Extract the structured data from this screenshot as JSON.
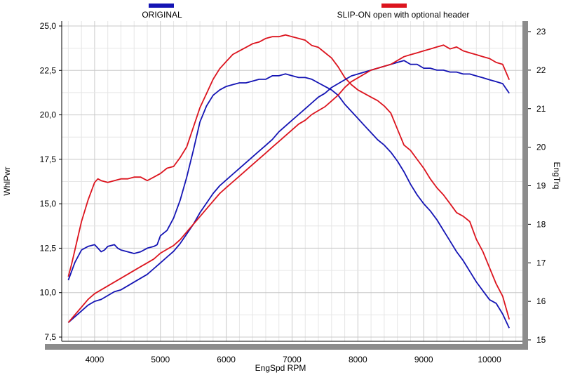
{
  "chart_data": {
    "type": "line",
    "xlabel": "EngSpd  RPM",
    "ylabel_left": "WhlPwr",
    "ylabel_right": "EngTrq",
    "xlim": [
      3500,
      10500
    ],
    "ylim_left": [
      7.5,
      25.0
    ],
    "ylim_right": [
      15,
      23
    ],
    "x_ticks": [
      4000,
      5000,
      6000,
      7000,
      8000,
      9000,
      10000
    ],
    "y_left_ticks": [
      "7,5",
      "10,0",
      "12,5",
      "15,0",
      "17,5",
      "20,0",
      "22,5",
      "25,0"
    ],
    "y_left_tick_values": [
      7.5,
      10.0,
      12.5,
      15.0,
      17.5,
      20.0,
      22.5,
      25.0
    ],
    "y_right_ticks": [
      15,
      16,
      17,
      18,
      19,
      20,
      21,
      22,
      23
    ],
    "grid": true,
    "legend": [
      {
        "name": "ORIGINAL",
        "color": "#1414b4"
      },
      {
        "name": "SLIP-ON open with optional header",
        "color": "#dc141e"
      }
    ],
    "series": [
      {
        "name": "ORIGINAL",
        "measure": "WhlPwr",
        "axis": "left",
        "color": "#1414b4",
        "x": [
          3600,
          3700,
          3800,
          3900,
          4000,
          4050,
          4100,
          4150,
          4200,
          4300,
          4350,
          4400,
          4500,
          4600,
          4700,
          4800,
          4900,
          4950,
          5000,
          5100,
          5200,
          5300,
          5400,
          5500,
          5600,
          5700,
          5800,
          5900,
          6000,
          6100,
          6200,
          6300,
          6400,
          6500,
          6600,
          6700,
          6800,
          6900,
          7000,
          7100,
          7200,
          7300,
          7400,
          7500,
          7600,
          7700,
          7800,
          7900,
          8000,
          8100,
          8200,
          8300,
          8400,
          8500,
          8600,
          8700,
          8800,
          8900,
          9000,
          9100,
          9200,
          9300,
          9400,
          9500,
          9600,
          9700,
          9800,
          9900,
          10000,
          10100,
          10200,
          10300
        ],
        "values": [
          10.7,
          11.7,
          12.4,
          12.6,
          12.7,
          12.5,
          12.3,
          12.4,
          12.6,
          12.7,
          12.5,
          12.4,
          12.3,
          12.2,
          12.3,
          12.5,
          12.6,
          12.7,
          13.2,
          13.5,
          14.2,
          15.2,
          16.5,
          18.0,
          19.6,
          20.5,
          21.1,
          21.4,
          21.6,
          21.7,
          21.8,
          21.8,
          21.9,
          22.0,
          22.0,
          22.2,
          22.2,
          22.3,
          22.2,
          22.1,
          22.1,
          22.0,
          21.8,
          21.6,
          21.4,
          21.1,
          20.6,
          20.2,
          19.8,
          19.4,
          19.0,
          18.6,
          18.3,
          17.9,
          17.4,
          16.8,
          16.1,
          15.5,
          15.0,
          14.6,
          14.1,
          13.5,
          12.9,
          12.3,
          11.8,
          11.2,
          10.6,
          10.1,
          9.6,
          9.4,
          8.8,
          8.0
        ]
      },
      {
        "name": "SLIP-ON open with optional header",
        "measure": "WhlPwr",
        "axis": "left",
        "color": "#dc141e",
        "x": [
          3600,
          3650,
          3700,
          3800,
          3900,
          4000,
          4050,
          4100,
          4200,
          4300,
          4400,
          4500,
          4600,
          4700,
          4800,
          4900,
          5000,
          5100,
          5200,
          5300,
          5400,
          5500,
          5600,
          5700,
          5800,
          5900,
          6000,
          6100,
          6200,
          6300,
          6400,
          6500,
          6600,
          6700,
          6800,
          6900,
          7000,
          7100,
          7200,
          7300,
          7400,
          7500,
          7600,
          7700,
          7800,
          7900,
          8000,
          8100,
          8200,
          8300,
          8400,
          8500,
          8600,
          8700,
          8800,
          8900,
          9000,
          9100,
          9200,
          9300,
          9400,
          9500,
          9600,
          9700,
          9800,
          9900,
          10000,
          10100,
          10200,
          10300
        ],
        "values": [
          10.9,
          11.6,
          12.4,
          14.0,
          15.2,
          16.2,
          16.4,
          16.3,
          16.2,
          16.3,
          16.4,
          16.4,
          16.5,
          16.5,
          16.3,
          16.5,
          16.7,
          17.0,
          17.1,
          17.6,
          18.2,
          19.3,
          20.4,
          21.2,
          22.0,
          22.6,
          23.0,
          23.4,
          23.6,
          23.8,
          24.0,
          24.1,
          24.3,
          24.4,
          24.4,
          24.5,
          24.4,
          24.3,
          24.2,
          23.9,
          23.8,
          23.5,
          23.2,
          22.7,
          22.1,
          21.7,
          21.4,
          21.2,
          21.0,
          20.8,
          20.5,
          20.1,
          19.2,
          18.3,
          18.0,
          17.5,
          17.0,
          16.4,
          15.9,
          15.5,
          15.0,
          14.5,
          14.3,
          14.0,
          13.0,
          12.3,
          11.4,
          10.5,
          9.8,
          8.5
        ]
      },
      {
        "name": "ORIGINAL",
        "measure": "EngTrq",
        "axis": "right",
        "color": "#1414b4",
        "x": [
          3600,
          3700,
          3800,
          3900,
          4000,
          4100,
          4200,
          4300,
          4400,
          4500,
          4600,
          4700,
          4800,
          4900,
          5000,
          5100,
          5200,
          5300,
          5400,
          5500,
          5600,
          5700,
          5800,
          5900,
          6000,
          6100,
          6200,
          6300,
          6400,
          6500,
          6600,
          6700,
          6800,
          6900,
          7000,
          7100,
          7200,
          7300,
          7400,
          7500,
          7600,
          7700,
          7800,
          7900,
          8000,
          8100,
          8200,
          8300,
          8400,
          8500,
          8600,
          8700,
          8800,
          8900,
          9000,
          9100,
          9200,
          9300,
          9400,
          9500,
          9600,
          9700,
          9800,
          9900,
          10000,
          10100,
          10200,
          10300
        ],
        "values": [
          15.45,
          15.6,
          15.75,
          15.9,
          16.0,
          16.05,
          16.15,
          16.25,
          16.3,
          16.4,
          16.5,
          16.6,
          16.7,
          16.85,
          17.0,
          17.15,
          17.3,
          17.5,
          17.75,
          18.0,
          18.3,
          18.55,
          18.8,
          19.0,
          19.15,
          19.3,
          19.45,
          19.6,
          19.75,
          19.9,
          20.05,
          20.2,
          20.4,
          20.55,
          20.7,
          20.85,
          21.0,
          21.15,
          21.3,
          21.4,
          21.55,
          21.65,
          21.75,
          21.85,
          21.9,
          21.95,
          22.0,
          22.05,
          22.1,
          22.15,
          22.2,
          22.25,
          22.15,
          22.15,
          22.05,
          22.05,
          22.0,
          22.0,
          21.95,
          21.95,
          21.9,
          21.9,
          21.85,
          21.8,
          21.75,
          21.7,
          21.65,
          21.4
        ],
        "note": ""
      },
      {
        "name": "SLIP-ON open with optional header",
        "measure": "EngTrq",
        "axis": "right",
        "color": "#dc141e",
        "x": [
          3600,
          3700,
          3800,
          3900,
          4000,
          4100,
          4200,
          4300,
          4400,
          4500,
          4600,
          4700,
          4800,
          4900,
          5000,
          5100,
          5200,
          5300,
          5400,
          5500,
          5600,
          5700,
          5800,
          5900,
          6000,
          6100,
          6200,
          6300,
          6400,
          6500,
          6600,
          6700,
          6800,
          6900,
          7000,
          7100,
          7200,
          7300,
          7400,
          7500,
          7600,
          7700,
          7800,
          7900,
          8000,
          8100,
          8200,
          8300,
          8400,
          8500,
          8600,
          8700,
          8800,
          8900,
          9000,
          9100,
          9200,
          9300,
          9400,
          9500,
          9600,
          9700,
          9800,
          9900,
          10000,
          10100,
          10200,
          10300
        ],
        "values": [
          15.45,
          15.65,
          15.85,
          16.05,
          16.2,
          16.3,
          16.4,
          16.5,
          16.6,
          16.7,
          16.8,
          16.9,
          17.0,
          17.1,
          17.25,
          17.35,
          17.45,
          17.6,
          17.8,
          18.0,
          18.2,
          18.4,
          18.6,
          18.8,
          18.95,
          19.1,
          19.25,
          19.4,
          19.55,
          19.7,
          19.85,
          20.0,
          20.15,
          20.3,
          20.45,
          20.6,
          20.7,
          20.85,
          20.95,
          21.05,
          21.2,
          21.35,
          21.55,
          21.7,
          21.8,
          21.9,
          22.0,
          22.05,
          22.1,
          22.15,
          22.25,
          22.35,
          22.4,
          22.45,
          22.5,
          22.55,
          22.6,
          22.65,
          22.55,
          22.6,
          22.5,
          22.45,
          22.4,
          22.35,
          22.3,
          22.2,
          22.15,
          21.75
        ],
        "note": ""
      }
    ]
  }
}
